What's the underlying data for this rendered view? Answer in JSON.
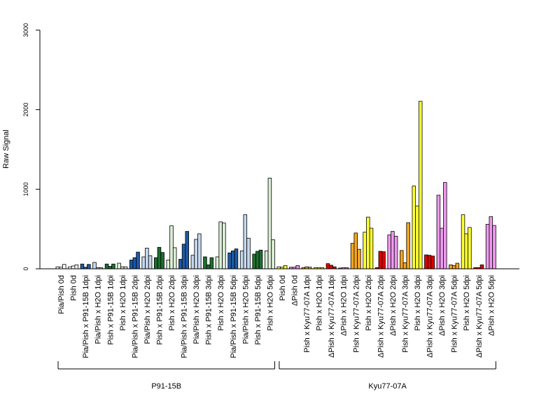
{
  "chart_data": {
    "type": "bar",
    "ylabel": "Raw Signal",
    "ylim": [
      0,
      3000
    ],
    "yticks": [
      0,
      1000,
      2000,
      3000
    ],
    "categories": [
      "Pia/Pish 0d",
      "Pish 0d",
      "Pia/Pish x P91-15B 1dpi",
      "Pia/Pish x H2O 1dpi",
      "Pish x P91-15B 1dpi",
      "Pish x H2O 1dpi",
      "Pia/Pish x P91-15B 2dpi",
      "Pia/Pish x H2O 2dpi",
      "Pish x P91-15B 2dpi",
      "Pish x H2O 2dpi",
      "Pia/Pish x P91-15B 3dpi",
      "Pia/Pish x H2O 3dpi",
      "Pish x P91-15B 3dpi",
      "Pish x H2O 3dpi",
      "Pia/Pish x P91-15B 5dpi",
      "Pia/Pish x H2O 5dpi",
      "Pish x P91-15B 5dpi",
      "Pish x H2O 5dpi",
      "Pish 0d",
      "ΔPish 0d",
      "Pish x Kyu77-07A 1dpi",
      "Pish x H2O 1dpi",
      "ΔPish x Kyu77-07A 1dpi",
      "ΔPish x H2O 1dpi",
      "Pish x Kyu77-07A 2dpi",
      "Pish x H2O 2dpi",
      "ΔPish x Kyu77-07A 2dpi",
      "ΔPish x H2O 2dpi",
      "Pish x Kyu77-07A 3dpi",
      "Pish x H2O 3dpi",
      "ΔPish x Kyu77-07A 3dpi",
      "ΔPish x H2O 3dpi",
      "Pish x Kyu77-07A 5dpi",
      "Pish x H2O 5dpi",
      "ΔPish x Kyu77-07A 5dpi",
      "ΔPish x H2O 5dpi"
    ],
    "colors": [
      "#ffffff",
      "#ffffff",
      "#1f5aa6",
      "#c6d8ee",
      "#1d7030",
      "#dcefd8",
      "#1f5aa6",
      "#c6d8ee",
      "#1d7030",
      "#dcefd8",
      "#1f5aa6",
      "#c6d8ee",
      "#1d7030",
      "#dcefd8",
      "#1f5aa6",
      "#c6d8ee",
      "#1d7030",
      "#dcefd8",
      "#ffff33",
      "#ee99ee",
      "#f5a623",
      "#ffff33",
      "#dd0000",
      "#ee99ee",
      "#f5a623",
      "#ffff33",
      "#dd0000",
      "#ee99ee",
      "#f5a623",
      "#ffff33",
      "#dd0000",
      "#ee99ee",
      "#f5a623",
      "#ffff33",
      "#dd0000",
      "#ee99ee"
    ],
    "values": [
      [
        25,
        20,
        55
      ],
      [
        25,
        35,
        50
      ],
      [
        60,
        20,
        55
      ],
      [
        80,
        15,
        15
      ],
      [
        60,
        30,
        60
      ],
      [
        70,
        25,
        25
      ],
      [
        110,
        140,
        210
      ],
      [
        150,
        260,
        165
      ],
      [
        140,
        270,
        205
      ],
      [
        110,
        540,
        265
      ],
      [
        120,
        310,
        470
      ],
      [
        170,
        370,
        440
      ],
      [
        150,
        50,
        140
      ],
      [
        150,
        590,
        575
      ],
      [
        200,
        225,
        250
      ],
      [
        225,
        680,
        385
      ],
      [
        185,
        220,
        235
      ],
      [
        225,
        1140,
        365
      ],
      [
        25,
        20,
        40
      ],
      [
        20,
        20,
        40
      ],
      [
        15,
        25,
        20
      ],
      [
        15,
        15,
        15
      ],
      [
        65,
        45,
        25
      ],
      [
        10,
        15,
        15
      ],
      [
        320,
        450,
        245
      ],
      [
        460,
        650,
        510
      ],
      [
        15,
        220,
        215
      ],
      [
        425,
        470,
        410
      ],
      [
        230,
        75,
        580
      ],
      [
        1040,
        790,
        2105
      ],
      [
        175,
        170,
        160
      ],
      [
        925,
        510,
        1085
      ],
      [
        50,
        40,
        70
      ],
      [
        680,
        440,
        520
      ],
      [
        15,
        15,
        50
      ],
      [
        560,
        655,
        545
      ]
    ],
    "groups": [
      {
        "name": "P91-15B",
        "from": 0,
        "to": 17
      },
      {
        "name": "Kyu77-07A",
        "from": 18,
        "to": 35
      }
    ]
  }
}
